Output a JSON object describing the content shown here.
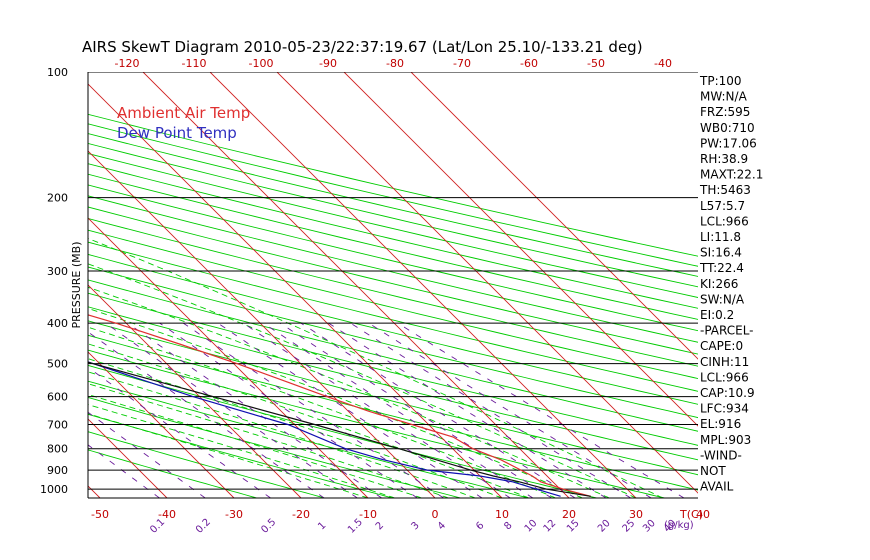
{
  "chart_data": {
    "type": "line",
    "title": "AIRS SkewT Diagram 2010-05-23/22:37:19.67 (Lat/Lon 25.10/-133.21 deg)",
    "ylabel": "PRESSURE (MB)",
    "top_xlabel": "",
    "bottom_xlabel_unit": "T(C)",
    "mixing_ratio_unit": "(g/kg)",
    "top_temperature_ticks": [
      "-120",
      "-110",
      "-100",
      "-90",
      "-80",
      "-70",
      "-60",
      "-50",
      "-40"
    ],
    "bottom_temperature_ticks": [
      "-50",
      "-40",
      "-30",
      "-20",
      "-10",
      "0",
      "10",
      "20",
      "30",
      "40"
    ],
    "mixing_ratio_ticks": [
      "0.1",
      "0.2",
      "0.5",
      "1",
      "1.5",
      "2",
      "3",
      "4",
      "6",
      "8",
      "10",
      "12",
      "15",
      "20",
      "25",
      "30",
      "40"
    ],
    "pressure_ticks": [
      "100",
      "200",
      "300",
      "400",
      "500",
      "600",
      "700",
      "800",
      "900",
      "1000"
    ],
    "pressure_values": [
      100,
      200,
      300,
      400,
      500,
      600,
      700,
      800,
      900,
      1000
    ],
    "ylim": [
      1050,
      100
    ],
    "legend_placement": "top-left",
    "series": [
      {
        "name": "Ambient Air Temp",
        "color": "#e03030",
        "points": [
          {
            "p": 1040,
            "t": 23.5
          },
          {
            "p": 1000,
            "t": 20.5
          },
          {
            "p": 960,
            "t": 18.2
          },
          {
            "p": 930,
            "t": 17.8
          },
          {
            "p": 900,
            "t": 17.0
          },
          {
            "p": 850,
            "t": 15.5
          },
          {
            "p": 800,
            "t": 13.0
          },
          {
            "p": 750,
            "t": 11.8
          },
          {
            "p": 700,
            "t": 7.5
          },
          {
            "p": 650,
            "t": 3.0
          },
          {
            "p": 600,
            "t": -1.0
          },
          {
            "p": 550,
            "t": -5.0
          },
          {
            "p": 500,
            "t": -9.5
          },
          {
            "p": 450,
            "t": -15.0
          },
          {
            "p": 400,
            "t": -21.5
          },
          {
            "p": 350,
            "t": -30.0
          },
          {
            "p": 300,
            "t": -41.0
          },
          {
            "p": 250,
            "t": -52.0
          },
          {
            "p": 200,
            "t": -64.0
          },
          {
            "p": 170,
            "t": -72.0
          },
          {
            "p": 150,
            "t": -75.0
          },
          {
            "p": 130,
            "t": -76.0
          },
          {
            "p": 115,
            "t": -75.5
          },
          {
            "p": 100,
            "t": -75.0
          }
        ]
      },
      {
        "name": "Dew Point Temp",
        "color": "#1010b0",
        "points": [
          {
            "p": 1040,
            "t": 19.0
          },
          {
            "p": 1000,
            "t": 16.5
          },
          {
            "p": 960,
            "t": 14.0
          },
          {
            "p": 930,
            "t": 10.0
          },
          {
            "p": 900,
            "t": 3.0
          },
          {
            "p": 850,
            "t": -2.0
          },
          {
            "p": 800,
            "t": -6.0
          },
          {
            "p": 700,
            "t": -11.0
          },
          {
            "p": 600,
            "t": -21.0
          },
          {
            "p": 500,
            "t": -31.0
          },
          {
            "p": 400,
            "t": -42.0
          },
          {
            "p": 300,
            "t": -59.0
          },
          {
            "p": 250,
            "t": -69.0
          },
          {
            "p": 200,
            "t": -76.0
          },
          {
            "p": 150,
            "t": -87.0
          },
          {
            "p": 130,
            "t": -92.0
          },
          {
            "p": 115,
            "t": -96.0
          },
          {
            "p": 100,
            "t": -100.0
          }
        ]
      },
      {
        "name": "",
        "color": "#101010",
        "points": [
          {
            "p": 1040,
            "t": 23.5
          },
          {
            "p": 1000,
            "t": 18.0
          },
          {
            "p": 960,
            "t": 15.0
          },
          {
            "p": 930,
            "t": 12.0
          },
          {
            "p": 900,
            "t": 9.5
          },
          {
            "p": 800,
            "t": 2.0
          },
          {
            "p": 700,
            "t": -7.0
          },
          {
            "p": 600,
            "t": -18.0
          },
          {
            "p": 500,
            "t": -31.0
          },
          {
            "p": 400,
            "t": -47.0
          },
          {
            "p": 300,
            "t": -64.0
          },
          {
            "p": 250,
            "t": -75.0
          },
          {
            "p": 200,
            "t": -87.0
          },
          {
            "p": 150,
            "t": -100.0
          },
          {
            "p": 120,
            "t": -109.0
          }
        ]
      }
    ],
    "indices": [
      "TP:100",
      "MW:N/A",
      "FRZ:595",
      "WB0:710",
      "PW:17.06",
      "RH:38.9",
      "MAXT:22.1",
      "TH:5463",
      "L57:5.7",
      "LCL:966",
      "LI:11.8",
      "SI:16.4",
      "TT:22.4",
      "KI:266",
      "SW:N/A",
      "EI:0.2",
      "-PARCEL-",
      "CAPE:0",
      "CINH:11",
      "LCL:966",
      "CAP:10.9",
      "LFC:934",
      "EL:916",
      "MPL:903",
      "-WIND-",
      "NOT",
      "AVAIL"
    ],
    "grid": true
  },
  "colors": {
    "isotherm": "#d02020",
    "dry_adiabat": "#00cc00",
    "moist_adiabat": "#00cc00",
    "mixing_ratio": "#6a1b9a",
    "isobar": "#000000"
  }
}
